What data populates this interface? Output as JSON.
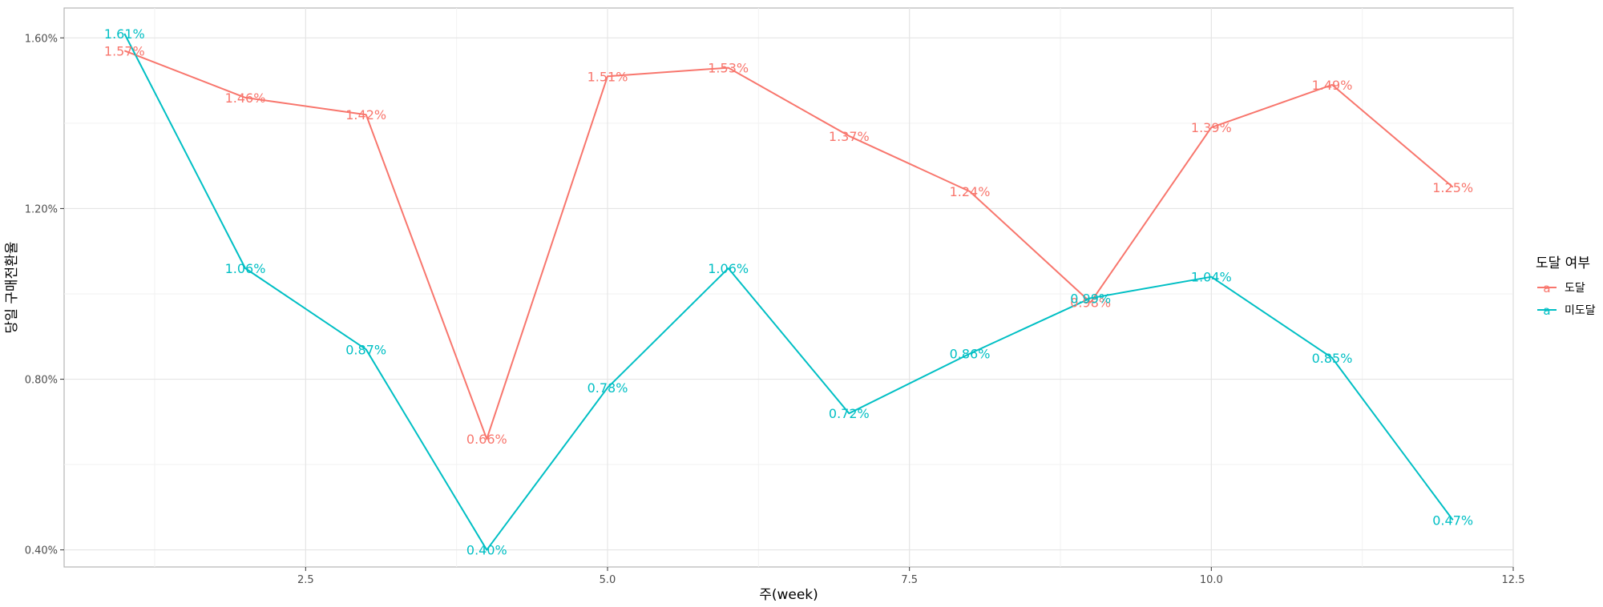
{
  "chart_data": {
    "type": "line",
    "xlabel": "주(week)",
    "ylabel": "당일 구매전환율",
    "xlim": [
      0.5,
      12.5
    ],
    "ylim": [
      0.36,
      1.67
    ],
    "x_ticks": [
      2.5,
      5.0,
      7.5,
      10.0,
      12.5
    ],
    "x_tick_labels": [
      "2.5",
      "5.0",
      "7.5",
      "10.0",
      "12.5"
    ],
    "y_ticks": [
      0.4,
      0.8,
      1.2,
      1.6
    ],
    "y_tick_labels": [
      "0.40%",
      "0.80%",
      "1.20%",
      "1.60%"
    ],
    "grid": true,
    "legend": {
      "title": "도달 여부",
      "position": "right",
      "key_glyph": "a"
    },
    "x": [
      1,
      2,
      3,
      4,
      5,
      6,
      7,
      8,
      9,
      10,
      11,
      12
    ],
    "series": [
      {
        "name": "도달",
        "color": "#F8766D",
        "values": [
          1.57,
          1.46,
          1.42,
          0.66,
          1.51,
          1.53,
          1.37,
          1.24,
          0.98,
          1.39,
          1.49,
          1.25
        ],
        "labels": [
          "1.57%",
          "1.46%",
          "1.42%",
          "0.66%",
          "1.51%",
          "1.53%",
          "1.37%",
          "1.24%",
          "0.98%",
          "1.39%",
          "1.49%",
          "1.25%"
        ]
      },
      {
        "name": "미도달",
        "color": "#00BFC4",
        "values": [
          1.61,
          1.06,
          0.87,
          0.4,
          0.78,
          1.06,
          0.72,
          0.86,
          0.99,
          1.04,
          0.85,
          0.47
        ],
        "labels": [
          "1.61%",
          "1.06%",
          "0.87%",
          "0.40%",
          "0.78%",
          "1.06%",
          "0.72%",
          "0.86%",
          "0.99%",
          "1.04%",
          "0.85%",
          "0.47%"
        ]
      }
    ]
  }
}
